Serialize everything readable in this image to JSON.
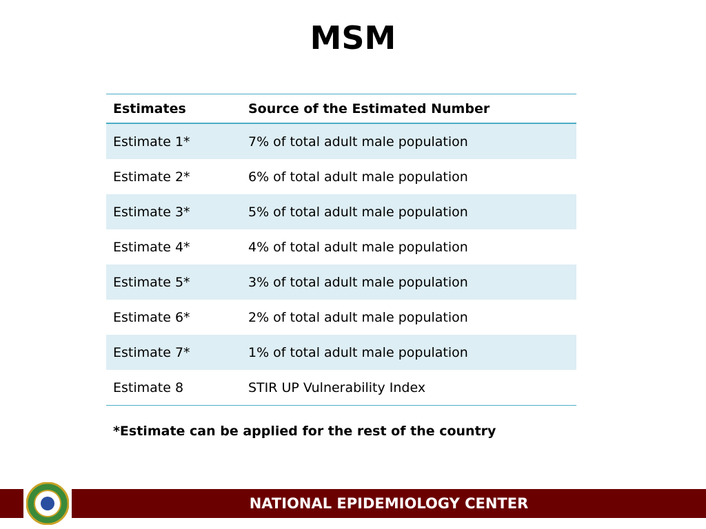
{
  "title": "MSM",
  "table": {
    "header": [
      "Estimates",
      "Source of the Estimated Number"
    ],
    "rows": [
      [
        "Estimate 1*",
        "7% of total adult male population"
      ],
      [
        "Estimate 2*",
        "6% of total adult male population"
      ],
      [
        "Estimate 3*",
        "5% of total adult male population"
      ],
      [
        "Estimate 4*",
        "4% of total adult male population"
      ],
      [
        "Estimate 5*",
        "3% of total adult male population"
      ],
      [
        "Estimate 6*",
        "2% of total adult male population"
      ],
      [
        "Estimate 7*",
        "1% of total adult male population"
      ],
      [
        "Estimate 8",
        "STIR UP Vulnerability Index"
      ]
    ]
  },
  "note": "*Estimate can be applied for the rest of the country",
  "footer": "NATIONAL EPIDEMIOLOGY CENTER"
}
